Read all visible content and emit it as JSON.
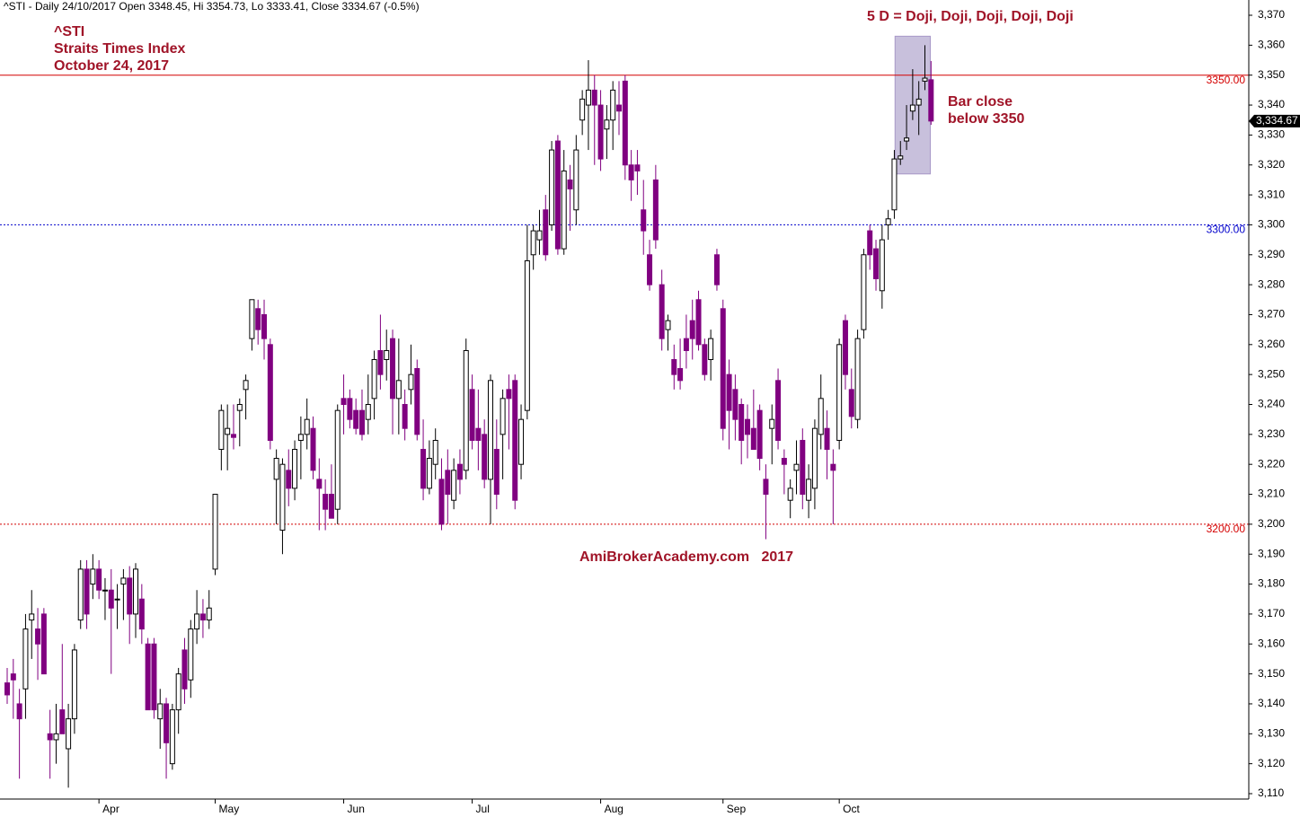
{
  "chart_data": {
    "type": "candlestick",
    "title": "^STI - Daily 24/10/2017 Open 3348.45, Hi 3354.73, Lo 3333.41, Close 3334.67 (-0.5%)",
    "annotations": [
      "^STI",
      "Straits Times Index",
      "October 24, 2017",
      "5 D = Doji, Doji, Doji, Doji, Doji",
      "Bar close",
      "below 3350",
      "AmiBrokerAcademy.com   2017"
    ],
    "up_color": "#ffffff",
    "down_color": "#800080",
    "ylim": [
      3108.2,
      3375.1
    ],
    "yticks": [
      {
        "value": 3110,
        "label": "3,110"
      },
      {
        "value": 3120,
        "label": "3,120"
      },
      {
        "value": 3130,
        "label": "3,130"
      },
      {
        "value": 3140,
        "label": "3,140"
      },
      {
        "value": 3150,
        "label": "3,150"
      },
      {
        "value": 3160,
        "label": "3,160"
      },
      {
        "value": 3170,
        "label": "3,170"
      },
      {
        "value": 3180,
        "label": "3,180"
      },
      {
        "value": 3190,
        "label": "3,190"
      },
      {
        "value": 3200,
        "label": "3,200"
      },
      {
        "value": 3210,
        "label": "3,210"
      },
      {
        "value": 3220,
        "label": "3,220"
      },
      {
        "value": 3230,
        "label": "3,230"
      },
      {
        "value": 3240,
        "label": "3,240"
      },
      {
        "value": 3250,
        "label": "3,250"
      },
      {
        "value": 3260,
        "label": "3,260"
      },
      {
        "value": 3270,
        "label": "3,270"
      },
      {
        "value": 3280,
        "label": "3,280"
      },
      {
        "value": 3290,
        "label": "3,290"
      },
      {
        "value": 3300,
        "label": "3,300"
      },
      {
        "value": 3310,
        "label": "3,310"
      },
      {
        "value": 3320,
        "label": "3,320"
      },
      {
        "value": 3330,
        "label": "3,330"
      },
      {
        "value": 3340,
        "label": "3,340"
      },
      {
        "value": 3350,
        "label": "3,350"
      },
      {
        "value": 3360,
        "label": "3,360"
      },
      {
        "value": 3370,
        "label": "3,370"
      }
    ],
    "reference_lines": [
      {
        "value": 3350,
        "label": "3350.00",
        "color": "#d40000",
        "style": "solid"
      },
      {
        "value": 3300,
        "label": "3300.00",
        "color": "#0000cc",
        "style": "dotted"
      },
      {
        "value": 3200,
        "label": "3200.00",
        "color": "#d40000",
        "style": "dotted"
      }
    ],
    "last_price": {
      "value": 3334.67,
      "label": "3,334.67"
    },
    "highlight": {
      "start": 146,
      "end": 150,
      "ymin": 3317,
      "ymax": 3363,
      "color": "#c8c0dc"
    },
    "categories": [
      null,
      null,
      null,
      null,
      null,
      null,
      null,
      null,
      null,
      null,
      null,
      null,
      null,
      null,
      null,
      "Apr",
      null,
      null,
      null,
      null,
      null,
      null,
      null,
      null,
      null,
      null,
      null,
      null,
      null,
      null,
      null,
      null,
      null,
      null,
      "May",
      null,
      null,
      null,
      null,
      null,
      null,
      null,
      null,
      null,
      null,
      null,
      null,
      null,
      null,
      null,
      null,
      null,
      null,
      null,
      null,
      "Jun",
      null,
      null,
      null,
      null,
      null,
      null,
      null,
      null,
      null,
      null,
      null,
      null,
      null,
      null,
      null,
      null,
      null,
      null,
      null,
      null,
      "Jul",
      null,
      null,
      null,
      null,
      null,
      null,
      null,
      null,
      null,
      null,
      null,
      null,
      null,
      null,
      null,
      null,
      null,
      null,
      null,
      null,
      "Aug",
      null,
      null,
      null,
      null,
      null,
      null,
      null,
      null,
      null,
      null,
      null,
      null,
      null,
      null,
      null,
      null,
      null,
      null,
      null,
      "Sep",
      null,
      null,
      null,
      null,
      null,
      null,
      null,
      null,
      null,
      null,
      null,
      null,
      null,
      null,
      null,
      null,
      null,
      null,
      "Oct",
      null,
      null,
      null,
      null,
      null,
      null,
      null,
      null,
      null,
      null,
      null,
      null,
      null,
      null,
      null
    ],
    "ohlc": [
      [
        3147,
        3152,
        3140,
        3143
      ],
      [
        3150,
        3155,
        3135,
        3148
      ],
      [
        3140,
        3145,
        3115,
        3135
      ],
      [
        3145,
        3170,
        3135,
        3165
      ],
      [
        3168,
        3178,
        3155,
        3170
      ],
      [
        3165,
        3172,
        3148,
        3160
      ],
      [
        3170,
        3172,
        3150,
        3150
      ],
      [
        3130,
        3138,
        3115,
        3128
      ],
      [
        3128,
        3140,
        3120,
        3130
      ],
      [
        3138,
        3160,
        3130,
        3130
      ],
      [
        3125,
        3140,
        3112,
        3135
      ],
      [
        3135,
        3160,
        3130,
        3158
      ],
      [
        3168,
        3188,
        3165,
        3185
      ],
      [
        3185,
        3188,
        3165,
        3170
      ],
      [
        3180,
        3190,
        3175,
        3185
      ],
      [
        3185,
        3188,
        3175,
        3178
      ],
      [
        3178,
        3182,
        3168,
        3178
      ],
      [
        3178,
        3185,
        3150,
        3172
      ],
      [
        3175,
        3180,
        3165,
        3175
      ],
      [
        3180,
        3185,
        3168,
        3182
      ],
      [
        3182,
        3186,
        3160,
        3170
      ],
      [
        3170,
        3187,
        3162,
        3185
      ],
      [
        3175,
        3180,
        3160,
        3165
      ],
      [
        3160,
        3162,
        3138,
        3138
      ],
      [
        3160,
        3162,
        3135,
        3138
      ],
      [
        3135,
        3145,
        3125,
        3140
      ],
      [
        3140,
        3142,
        3115,
        3127
      ],
      [
        3120,
        3140,
        3118,
        3138
      ],
      [
        3138,
        3152,
        3130,
        3150
      ],
      [
        3158,
        3162,
        3140,
        3145
      ],
      [
        3148,
        3168,
        3142,
        3165
      ],
      [
        3165,
        3178,
        3160,
        3170
      ],
      [
        3170,
        3175,
        3162,
        3168
      ],
      [
        3168,
        3178,
        3165,
        3172
      ],
      [
        3185,
        3210,
        3183,
        3210
      ],
      [
        3225,
        3240,
        3218,
        3238
      ],
      [
        3230,
        3240,
        3218,
        3232
      ],
      [
        3230,
        3240,
        3225,
        3229
      ],
      [
        3238,
        3242,
        3226,
        3240
      ],
      [
        3245,
        3250,
        3235,
        3248
      ],
      [
        3262,
        3275,
        3258,
        3275
      ],
      [
        3272,
        3275,
        3260,
        3265
      ],
      [
        3270,
        3275,
        3255,
        3262
      ],
      [
        3260,
        3262,
        3225,
        3228
      ],
      [
        3215,
        3225,
        3200,
        3222
      ],
      [
        3198,
        3222,
        3190,
        3220
      ],
      [
        3218,
        3225,
        3206,
        3212
      ],
      [
        3212,
        3228,
        3208,
        3225
      ],
      [
        3228,
        3236,
        3215,
        3230
      ],
      [
        3230,
        3242,
        3225,
        3235
      ],
      [
        3232,
        3236,
        3215,
        3218
      ],
      [
        3215,
        3222,
        3198,
        3212
      ],
      [
        3210,
        3215,
        3198,
        3205
      ],
      [
        3210,
        3220,
        3202,
        3202
      ],
      [
        3205,
        3240,
        3200,
        3238
      ],
      [
        3242,
        3250,
        3230,
        3240
      ],
      [
        3242,
        3245,
        3232,
        3235
      ],
      [
        3238,
        3242,
        3230,
        3232
      ],
      [
        3238,
        3245,
        3228,
        3230
      ],
      [
        3235,
        3250,
        3230,
        3240
      ],
      [
        3242,
        3258,
        3235,
        3255
      ],
      [
        3258,
        3270,
        3245,
        3250
      ],
      [
        3255,
        3265,
        3248,
        3258
      ],
      [
        3262,
        3265,
        3230,
        3242
      ],
      [
        3242,
        3262,
        3230,
        3248
      ],
      [
        3240,
        3245,
        3228,
        3232
      ],
      [
        3245,
        3260,
        3240,
        3250
      ],
      [
        3252,
        3255,
        3228,
        3230
      ],
      [
        3225,
        3235,
        3208,
        3212
      ],
      [
        3212,
        3228,
        3210,
        3222
      ],
      [
        3220,
        3232,
        3215,
        3228
      ],
      [
        3215,
        3222,
        3198,
        3200
      ],
      [
        3218,
        3225,
        3200,
        3210
      ],
      [
        3208,
        3222,
        3205,
        3218
      ],
      [
        3220,
        3225,
        3210,
        3215
      ],
      [
        3218,
        3262,
        3215,
        3258
      ],
      [
        3245,
        3250,
        3225,
        3228
      ],
      [
        3232,
        3245,
        3218,
        3228
      ],
      [
        3230,
        3235,
        3212,
        3215
      ],
      [
        3215,
        3250,
        3200,
        3248
      ],
      [
        3225,
        3235,
        3205,
        3210
      ],
      [
        3230,
        3245,
        3215,
        3242
      ],
      [
        3245,
        3250,
        3225,
        3242
      ],
      [
        3248,
        3250,
        3205,
        3208
      ],
      [
        3220,
        3240,
        3215,
        3235
      ],
      [
        3238,
        3300,
        3235,
        3288
      ],
      [
        3290,
        3300,
        3285,
        3298
      ],
      [
        3295,
        3305,
        3290,
        3298
      ],
      [
        3305,
        3310,
        3288,
        3290
      ],
      [
        3300,
        3328,
        3298,
        3325
      ],
      [
        3328,
        3330,
        3290,
        3292
      ],
      [
        3292,
        3325,
        3290,
        3318
      ],
      [
        3315,
        3320,
        3298,
        3312
      ],
      [
        3305,
        3330,
        3300,
        3325
      ],
      [
        3335,
        3345,
        3330,
        3342
      ],
      [
        3340,
        3355,
        3325,
        3345
      ],
      [
        3345,
        3350,
        3320,
        3340
      ],
      [
        3340,
        3345,
        3318,
        3322
      ],
      [
        3332,
        3340,
        3322,
        3335
      ],
      [
        3335,
        3348,
        3325,
        3345
      ],
      [
        3340,
        3348,
        3330,
        3338
      ],
      [
        3348,
        3350,
        3315,
        3320
      ],
      [
        3320,
        3325,
        3308,
        3315
      ],
      [
        3320,
        3325,
        3310,
        3318
      ],
      [
        3305,
        3315,
        3290,
        3298
      ],
      [
        3290,
        3295,
        3278,
        3280
      ],
      [
        3315,
        3320,
        3292,
        3295
      ],
      [
        3280,
        3285,
        3258,
        3262
      ],
      [
        3265,
        3270,
        3258,
        3268
      ],
      [
        3255,
        3260,
        3245,
        3250
      ],
      [
        3252,
        3262,
        3245,
        3248
      ],
      [
        3262,
        3270,
        3252,
        3258
      ],
      [
        3268,
        3275,
        3255,
        3262
      ],
      [
        3275,
        3278,
        3258,
        3260
      ],
      [
        3260,
        3262,
        3248,
        3250
      ],
      [
        3255,
        3265,
        3248,
        3262
      ],
      [
        3290,
        3292,
        3278,
        3280
      ],
      [
        3272,
        3275,
        3228,
        3232
      ],
      [
        3250,
        3255,
        3225,
        3238
      ],
      [
        3245,
        3250,
        3228,
        3235
      ],
      [
        3240,
        3242,
        3220,
        3228
      ],
      [
        3235,
        3240,
        3222,
        3230
      ],
      [
        3232,
        3245,
        3225,
        3225
      ],
      [
        3238,
        3240,
        3218,
        3222
      ],
      [
        3215,
        3220,
        3195,
        3210
      ],
      [
        3232,
        3240,
        3220,
        3235
      ],
      [
        3248,
        3252,
        3225,
        3228
      ],
      [
        3222,
        3225,
        3210,
        3220
      ],
      [
        3208,
        3215,
        3202,
        3212
      ],
      [
        3218,
        3228,
        3210,
        3220
      ],
      [
        3228,
        3232,
        3205,
        3210
      ],
      [
        3208,
        3220,
        3202,
        3215
      ],
      [
        3212,
        3235,
        3205,
        3232
      ],
      [
        3230,
        3250,
        3225,
        3242
      ],
      [
        3232,
        3238,
        3215,
        3225
      ],
      [
        3220,
        3225,
        3200,
        3218
      ],
      [
        3228,
        3262,
        3225,
        3260
      ],
      [
        3268,
        3270,
        3245,
        3250
      ],
      [
        3245,
        3252,
        3232,
        3236
      ],
      [
        3235,
        3265,
        3232,
        3262
      ],
      [
        3265,
        3292,
        3262,
        3290
      ],
      [
        3298,
        3300,
        3285,
        3290
      ],
      [
        3292,
        3295,
        3278,
        3282
      ],
      [
        3278,
        3300,
        3272,
        3295
      ],
      [
        3300,
        3305,
        3295,
        3302
      ],
      [
        3305,
        3325,
        3302,
        3322
      ],
      [
        3322,
        3328,
        3320,
        3323
      ],
      [
        3328,
        3340,
        3325,
        3329
      ],
      [
        3338,
        3352,
        3335,
        3340
      ],
      [
        3340,
        3348,
        3330,
        3342
      ],
      [
        3348,
        3360,
        3345,
        3349
      ],
      [
        3348.45,
        3354.73,
        3333.41,
        3334.67
      ]
    ]
  }
}
